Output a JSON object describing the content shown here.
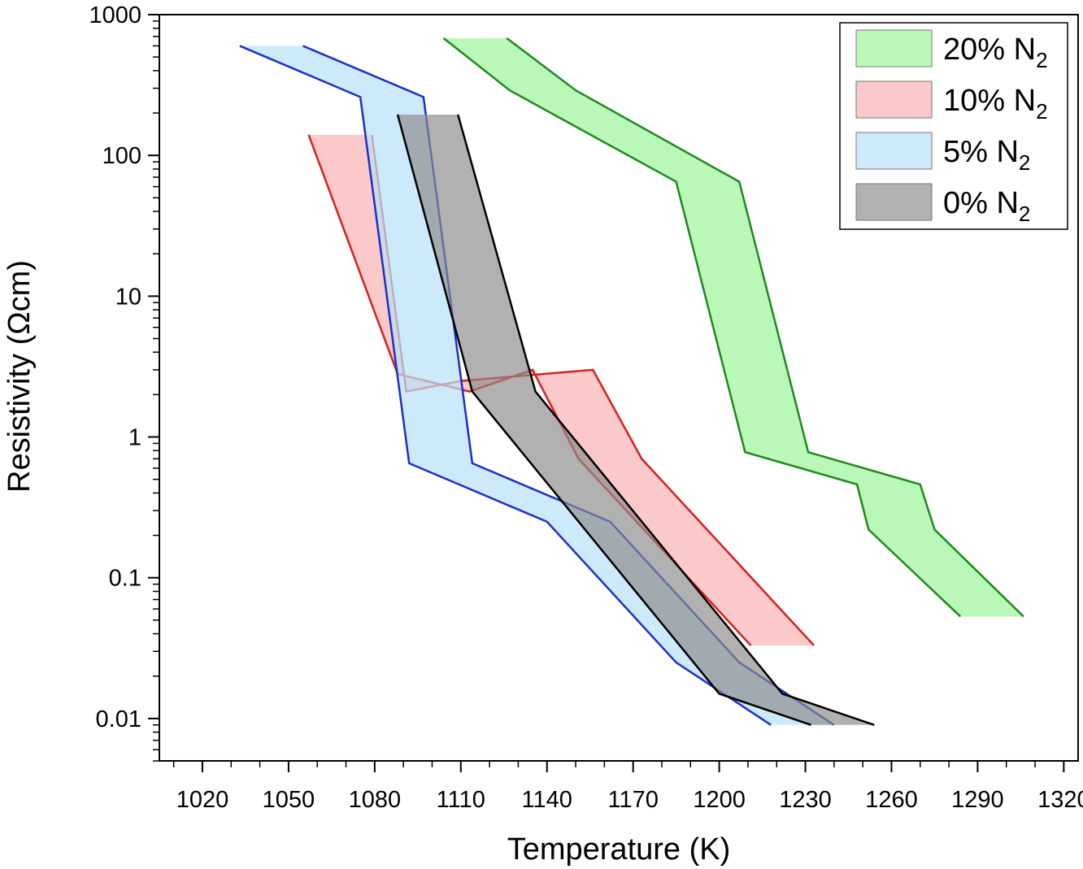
{
  "chart_data": {
    "type": "area",
    "title": "",
    "xlabel": "Temperature (K)",
    "ylabel": "Resistivity (Ωcm)",
    "xlim": [
      1005,
      1325
    ],
    "ylim": [
      0.005,
      1000
    ],
    "yscale": "log",
    "x_ticks": [
      1020,
      1050,
      1080,
      1110,
      1140,
      1170,
      1200,
      1230,
      1260,
      1290,
      1320
    ],
    "x_tick_labels": [
      "1020",
      "1050",
      "1080",
      "1110",
      "1140",
      "1170",
      "1200",
      "1230",
      "1260",
      "1290",
      "1320"
    ],
    "y_ticks": [
      0.01,
      0.1,
      1,
      10,
      100,
      1000
    ],
    "y_tick_labels": [
      "0.01",
      "0.1",
      "1",
      "10",
      "100",
      "1000"
    ],
    "legend_position": "top-right",
    "series": [
      {
        "name": "20% N2",
        "label_main": "20% N",
        "label_sub": "2",
        "fill": "#9ff59f",
        "fill_opacity": 0.72,
        "stroke": "#1e8a1e",
        "lower": [
          [
            1104,
            680
          ],
          [
            1127,
            290
          ],
          [
            1185,
            65
          ],
          [
            1209,
            0.78
          ],
          [
            1248,
            0.46
          ],
          [
            1252,
            0.22
          ],
          [
            1284,
            0.053
          ]
        ],
        "upper": [
          [
            1126,
            680
          ],
          [
            1150,
            290
          ],
          [
            1207,
            65
          ],
          [
            1231,
            0.78
          ],
          [
            1270,
            0.46
          ],
          [
            1275,
            0.22
          ],
          [
            1306,
            0.053
          ]
        ]
      },
      {
        "name": "10% N2",
        "label_main": "10% N",
        "label_sub": "2",
        "fill": "#f9b4b4",
        "fill_opacity": 0.72,
        "stroke": "#d81e1e",
        "lower": [
          [
            1057,
            140
          ],
          [
            1088,
            2.8
          ],
          [
            1113,
            2.1
          ],
          [
            1135,
            3.0
          ],
          [
            1151,
            0.7
          ],
          [
            1211,
            0.033
          ]
        ],
        "upper": [
          [
            1079,
            140
          ],
          [
            1091,
            2.1
          ],
          [
            1110,
            2.5
          ],
          [
            1156,
            3.0
          ],
          [
            1173,
            0.7
          ],
          [
            1233,
            0.033
          ]
        ]
      },
      {
        "name": "5% N2",
        "label_main": "5% N",
        "label_sub": "2",
        "fill": "#b8e2f7",
        "fill_opacity": 0.72,
        "stroke": "#1e2ec8",
        "lower": [
          [
            1033,
            600
          ],
          [
            1075,
            260
          ],
          [
            1092,
            0.65
          ],
          [
            1140,
            0.25
          ],
          [
            1185,
            0.025
          ],
          [
            1218,
            0.009
          ]
        ],
        "upper": [
          [
            1055,
            600
          ],
          [
            1097,
            260
          ],
          [
            1114,
            0.65
          ],
          [
            1162,
            0.25
          ],
          [
            1207,
            0.025
          ],
          [
            1240,
            0.009
          ]
        ]
      },
      {
        "name": "0% N2",
        "label_main": "0% N",
        "label_sub": "2",
        "fill": "#8c8c8c",
        "fill_opacity": 0.68,
        "stroke": "#000000",
        "lower": [
          [
            1088,
            195
          ],
          [
            1114,
            2.1
          ],
          [
            1200,
            0.015
          ],
          [
            1232,
            0.009
          ]
        ],
        "upper": [
          [
            1109,
            195
          ],
          [
            1136,
            2.1
          ],
          [
            1222,
            0.015
          ],
          [
            1254,
            0.009
          ]
        ]
      }
    ]
  }
}
